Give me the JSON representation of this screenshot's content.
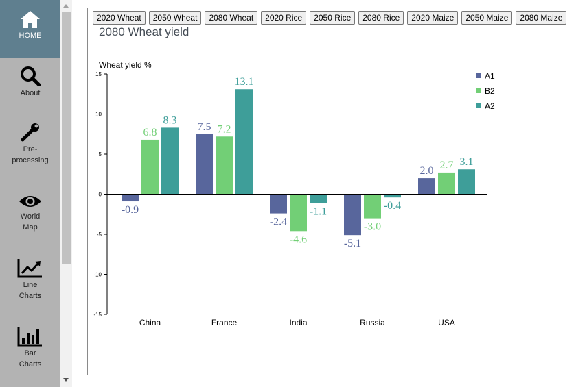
{
  "sidebar": {
    "items": [
      {
        "label": "HOME",
        "icon": "home-icon"
      },
      {
        "label": "About",
        "icon": "search-icon"
      },
      {
        "label": "Pre-processing",
        "label_lines": [
          "Pre-",
          "processing"
        ],
        "icon": "wrench-icon"
      },
      {
        "label": "World Map",
        "label_lines": [
          "World",
          "Map"
        ],
        "icon": "eye-icon"
      },
      {
        "label": "Line Charts",
        "label_lines": [
          "Line",
          "Charts"
        ],
        "icon": "line-chart-icon"
      },
      {
        "label": "Bar Charts",
        "label_lines": [
          "Bar",
          "Charts"
        ],
        "icon": "bar-chart-icon"
      }
    ],
    "active": "HOME"
  },
  "toolbar": {
    "buttons": [
      "2020 Wheat",
      "2050 Wheat",
      "2080 Wheat",
      "2020 Rice",
      "2050 Rice",
      "2080 Rice",
      "2020 Maize",
      "2050 Maize",
      "2080 Maize"
    ]
  },
  "colors": {
    "A1": "#58669c",
    "B2": "#72cf76",
    "A2": "#3e9e99",
    "sidebar_active": "#5f7f8f",
    "sidebar_bg": "#b3b3b3"
  },
  "chart_data": {
    "type": "bar",
    "title": "2080 Wheat yield",
    "ylabel": "Wheat yield %",
    "xlabel": "",
    "categories": [
      "China",
      "France",
      "India",
      "Russia",
      "USA"
    ],
    "series": [
      {
        "name": "A1",
        "values": [
          -0.9,
          7.5,
          -2.4,
          -5.1,
          2.0
        ],
        "labels": [
          "-0.9",
          "7.5",
          "-2.4",
          "-5.1",
          "2.0"
        ]
      },
      {
        "name": "B2",
        "values": [
          6.8,
          7.2,
          -4.6,
          -3.0,
          2.7
        ],
        "labels": [
          "6.8",
          "7.2",
          "-4.6",
          "-3.0",
          "2.7"
        ]
      },
      {
        "name": "A2",
        "values": [
          8.3,
          13.1,
          -1.1,
          -0.4,
          3.1
        ],
        "labels": [
          "8.3",
          "13.1",
          "-1.1",
          "-0.4",
          "3.1"
        ]
      }
    ],
    "ylim": [
      -15,
      15
    ],
    "yticks": [
      15,
      10,
      5,
      0,
      -5,
      -10,
      -15
    ],
    "legend_position": "top-right",
    "grid": false
  }
}
